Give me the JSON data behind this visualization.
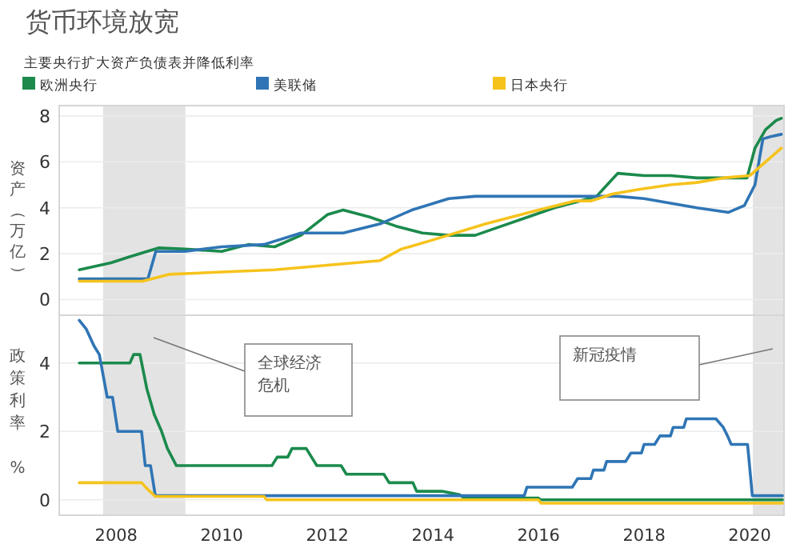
{
  "chart_data": [
    {
      "type": "line",
      "title": "货币环境放宽",
      "subtitle": "主要央行扩大资产负债表并降低利率",
      "ylabel": "资产（万亿）",
      "legend": "top",
      "grid": "y",
      "tick_labels": "y",
      "xlim": [
        2006.92,
        2020.65
      ],
      "ylim": [
        -0.68,
        8.45
      ],
      "yticks": [
        0,
        2,
        4,
        6,
        8
      ],
      "bands": [
        {
          "axis": "x",
          "from": 2007.75,
          "to": 2009.31,
          "color": "#e3e3e3"
        },
        {
          "axis": "x",
          "from": 2020.06,
          "to": 2020.65,
          "color": "#e3e3e3"
        }
      ],
      "series": [
        {
          "name": "欧洲央行",
          "color": "#1b8a4c",
          "x": [
            2007.3,
            2007.9,
            2008.3,
            2008.8,
            2009.3,
            2010.0,
            2010.5,
            2011.0,
            2011.5,
            2012.0,
            2012.3,
            2012.8,
            2013.3,
            2013.8,
            2014.3,
            2014.8,
            2015.3,
            2015.8,
            2016.3,
            2016.8,
            2017.1,
            2017.5,
            2018.0,
            2018.5,
            2019.0,
            2019.5,
            2019.95,
            2020.1,
            2020.3,
            2020.5,
            2020.6
          ],
          "values": [
            1.3,
            1.6,
            1.9,
            2.25,
            2.2,
            2.1,
            2.4,
            2.3,
            2.8,
            3.7,
            3.9,
            3.6,
            3.2,
            2.9,
            2.8,
            2.8,
            3.2,
            3.6,
            4.0,
            4.3,
            4.5,
            5.5,
            5.4,
            5.4,
            5.3,
            5.3,
            5.3,
            6.6,
            7.4,
            7.8,
            7.9
          ]
        },
        {
          "name": "美联储",
          "color": "#2f75b5",
          "x": [
            2007.3,
            2008.6,
            2008.75,
            2009.3,
            2010.0,
            2010.8,
            2011.5,
            2012.3,
            2013.0,
            2013.6,
            2014.3,
            2014.8,
            2017.5,
            2018.0,
            2018.5,
            2019.0,
            2019.6,
            2019.9,
            2020.1,
            2020.25,
            2020.4,
            2020.6
          ],
          "values": [
            0.9,
            0.9,
            2.1,
            2.1,
            2.3,
            2.4,
            2.9,
            2.9,
            3.3,
            3.9,
            4.4,
            4.5,
            4.5,
            4.4,
            4.2,
            4.0,
            3.8,
            4.1,
            5.0,
            7.0,
            7.1,
            7.2
          ]
        },
        {
          "name": "日本央行",
          "color": "#f6c31c",
          "x": [
            2007.3,
            2008.5,
            2009.0,
            2010.0,
            2011.0,
            2012.0,
            2013.0,
            2013.4,
            2014.0,
            2015.0,
            2016.0,
            2016.7,
            2017.0,
            2017.4,
            2017.9,
            2018.5,
            2019.0,
            2019.5,
            2020.0,
            2020.3,
            2020.6
          ],
          "values": [
            0.8,
            0.8,
            1.1,
            1.2,
            1.3,
            1.5,
            1.7,
            2.2,
            2.6,
            3.3,
            3.9,
            4.3,
            4.3,
            4.6,
            4.8,
            5.0,
            5.1,
            5.3,
            5.4,
            6.0,
            6.6
          ]
        }
      ]
    },
    {
      "type": "line",
      "ylabel": "政策利率 %",
      "grid": "y",
      "xlim": [
        2006.92,
        2020.65
      ],
      "ylim": [
        -0.45,
        5.4
      ],
      "xticks": [
        2008,
        2010,
        2012,
        2014,
        2016,
        2018,
        2020
      ],
      "yticks": [
        0,
        2,
        4
      ],
      "bands": [
        {
          "axis": "x",
          "from": 2007.75,
          "to": 2009.31,
          "color": "#e3e3e3"
        },
        {
          "axis": "x",
          "from": 2020.06,
          "to": 2020.65,
          "color": "#e3e3e3"
        }
      ],
      "annotations": [
        "全球经济危机",
        "新冠疫情"
      ],
      "series": [
        {
          "color": "#1b8a4c",
          "x": [
            2007.3,
            2008.26,
            2008.33,
            2008.45,
            2008.58,
            2008.72,
            2008.86,
            2008.97,
            2009.14,
            2010.95,
            2011.05,
            2011.25,
            2011.33,
            2011.6,
            2011.7,
            2011.8,
            2012.26,
            2012.36,
            2013.07,
            2013.17,
            2013.62,
            2013.69,
            2014.17,
            2014.5,
            2014.6,
            2016.0,
            2016.04,
            2020.62
          ],
          "values": [
            4,
            4,
            4.25,
            4.25,
            3.25,
            2.5,
            2.0,
            1.5,
            1.0,
            1.0,
            1.25,
            1.25,
            1.5,
            1.5,
            1.25,
            1.0,
            1.0,
            0.75,
            0.75,
            0.5,
            0.5,
            0.25,
            0.25,
            0.15,
            0.05,
            0.05,
            0,
            0
          ]
        },
        {
          "color": "#2f75b5",
          "x": [
            2007.3,
            2007.43,
            2007.58,
            2007.68,
            2007.83,
            2007.93,
            2008.03,
            2008.48,
            2008.55,
            2008.65,
            2008.74,
            2015.73,
            2015.78,
            2016.64,
            2016.74,
            2016.99,
            2017.04,
            2017.24,
            2017.29,
            2017.65,
            2017.75,
            2017.95,
            2018.0,
            2018.2,
            2018.3,
            2018.5,
            2018.55,
            2018.75,
            2018.8,
            2019.36,
            2019.5,
            2019.58,
            2019.65,
            2019.96,
            2020.05,
            2020.62
          ],
          "values": [
            5.25,
            5.0,
            4.5,
            4.25,
            3.0,
            3.0,
            2.0,
            2.0,
            1.0,
            1.0,
            0.12,
            0.12,
            0.37,
            0.37,
            0.62,
            0.62,
            0.87,
            0.87,
            1.12,
            1.12,
            1.37,
            1.37,
            1.62,
            1.62,
            1.87,
            1.87,
            2.12,
            2.12,
            2.37,
            2.37,
            2.12,
            1.87,
            1.62,
            1.62,
            0.12,
            0.12
          ]
        },
        {
          "color": "#f6c31c",
          "x": [
            2007.3,
            2008.48,
            2008.6,
            2008.74,
            2010.8,
            2010.85,
            2016.0,
            2016.05,
            2020.62
          ],
          "values": [
            0.5,
            0.5,
            0.3,
            0.1,
            0.1,
            0,
            0,
            -0.1,
            -0.1
          ]
        }
      ]
    }
  ]
}
